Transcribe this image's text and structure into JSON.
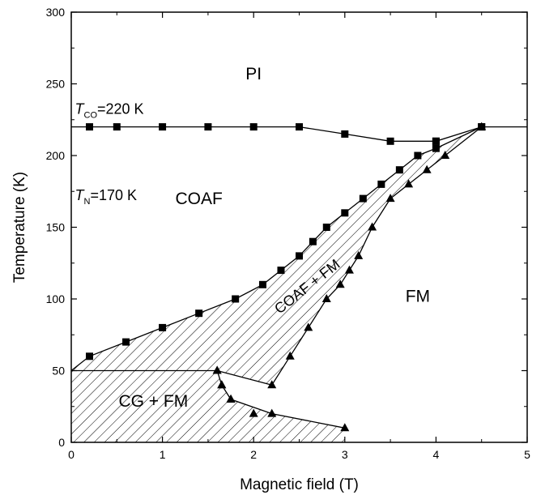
{
  "chart_data": {
    "type": "scatter",
    "title": "",
    "xlabel": "Magnetic field (T)",
    "ylabel": "Temperature (K)",
    "xlim": [
      0,
      5
    ],
    "ylim": [
      0,
      300
    ],
    "xticks": [
      0,
      1,
      2,
      3,
      4,
      5
    ],
    "yticks": [
      0,
      50,
      100,
      150,
      200,
      250,
      300
    ],
    "grid": false,
    "series": [
      {
        "marker": "square",
        "x": [
          0,
          0.2,
          0.5,
          1,
          1.5,
          2,
          2.5,
          3,
          3.5,
          4,
          4,
          4.5,
          5
        ],
        "y": [
          220,
          220,
          220,
          220,
          220,
          220,
          220,
          215,
          210,
          210,
          210,
          220,
          220
        ],
        "marker_indices": [
          1,
          2,
          3,
          4,
          5,
          6,
          7,
          8,
          9,
          10,
          11
        ]
      },
      {
        "marker": "square",
        "x": [
          0.2,
          0.6,
          1.0,
          1.4,
          1.8,
          2.1,
          2.3,
          2.5,
          2.65,
          2.8,
          3.0,
          3.2,
          3.4,
          3.6,
          3.8,
          4.0,
          4.5
        ],
        "y": [
          60,
          70,
          80,
          90,
          100,
          110,
          120,
          130,
          140,
          150,
          160,
          170,
          180,
          190,
          200,
          205,
          220
        ]
      },
      {
        "marker": "triangle",
        "x": [
          1.6,
          1.65,
          1.75,
          2.0,
          2.2,
          2.4,
          2.6,
          2.8,
          2.95,
          3.05,
          3.15,
          3.3,
          3.5,
          3.7,
          3.9,
          4.1,
          4.5
        ],
        "y": [
          50,
          40,
          30,
          20,
          40,
          60,
          80,
          100,
          110,
          120,
          130,
          150,
          170,
          180,
          190,
          200,
          220
        ]
      },
      {
        "marker": "triangle",
        "x": [
          1.6,
          1.65,
          1.75,
          2.2,
          3.0
        ],
        "y": [
          50,
          40,
          30,
          20,
          10
        ]
      }
    ],
    "regions": [
      {
        "name": "PI",
        "x": 2.0,
        "y": 253
      },
      {
        "name": "COAF",
        "x": 1.4,
        "y": 166
      },
      {
        "name": "FM",
        "x": 3.8,
        "y": 98
      },
      {
        "name": "CG + FM",
        "x": 0.9,
        "y": 25
      }
    ],
    "annotations": [
      {
        "main": "T",
        "sub": "CO",
        "rest": "=220 K",
        "x": 0.04,
        "y": 229
      },
      {
        "main": "T",
        "sub": "N",
        "rest": "=170 K",
        "x": 0.04,
        "y": 169
      }
    ],
    "diagonal_label": {
      "text": "COAF + FM",
      "x": 2.62,
      "y": 106,
      "angle": -38
    },
    "colors": {
      "marker": "#000000",
      "line": "#000000",
      "hatch": "#000000"
    }
  }
}
